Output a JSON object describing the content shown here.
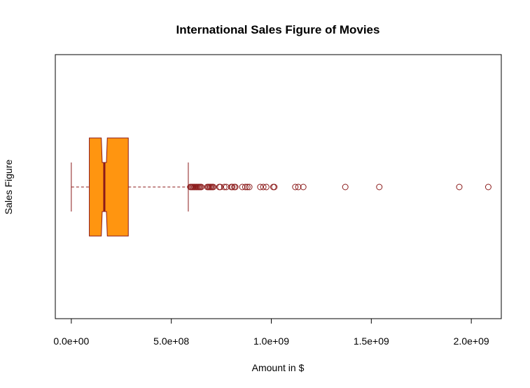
{
  "chart_data": {
    "type": "boxplot",
    "orientation": "horizontal",
    "notch": true,
    "title": "International Sales Figure of Movies",
    "xlabel": "Amount in $",
    "ylabel": "Sales Figure",
    "xlim": [
      -80000000,
      2150000000
    ],
    "x_ticks": [
      0,
      500000000,
      1000000000,
      1500000000,
      2000000000
    ],
    "x_tick_labels": [
      "0.0e+00",
      "5.0e+08",
      "1.0e+09",
      "1.5e+09",
      "2.0e+09"
    ],
    "box": {
      "whisker_low": 0,
      "q1": 90000000,
      "median": 165000000,
      "q3": 285000000,
      "whisker_high": 585000000,
      "notch_low": 150000000,
      "notch_high": 180000000
    },
    "outliers": [
      595000000,
      600000000,
      605000000,
      610000000,
      615000000,
      620000000,
      625000000,
      630000000,
      635000000,
      640000000,
      645000000,
      650000000,
      680000000,
      685000000,
      690000000,
      695000000,
      700000000,
      705000000,
      710000000,
      740000000,
      745000000,
      765000000,
      775000000,
      800000000,
      805000000,
      815000000,
      820000000,
      855000000,
      870000000,
      880000000,
      890000000,
      945000000,
      960000000,
      975000000,
      1010000000,
      1015000000,
      1120000000,
      1135000000,
      1160000000,
      1370000000,
      1540000000,
      1940000000,
      2085000000
    ],
    "colors": {
      "box_fill": "#FF9510",
      "border": "#8B1A1A"
    }
  }
}
